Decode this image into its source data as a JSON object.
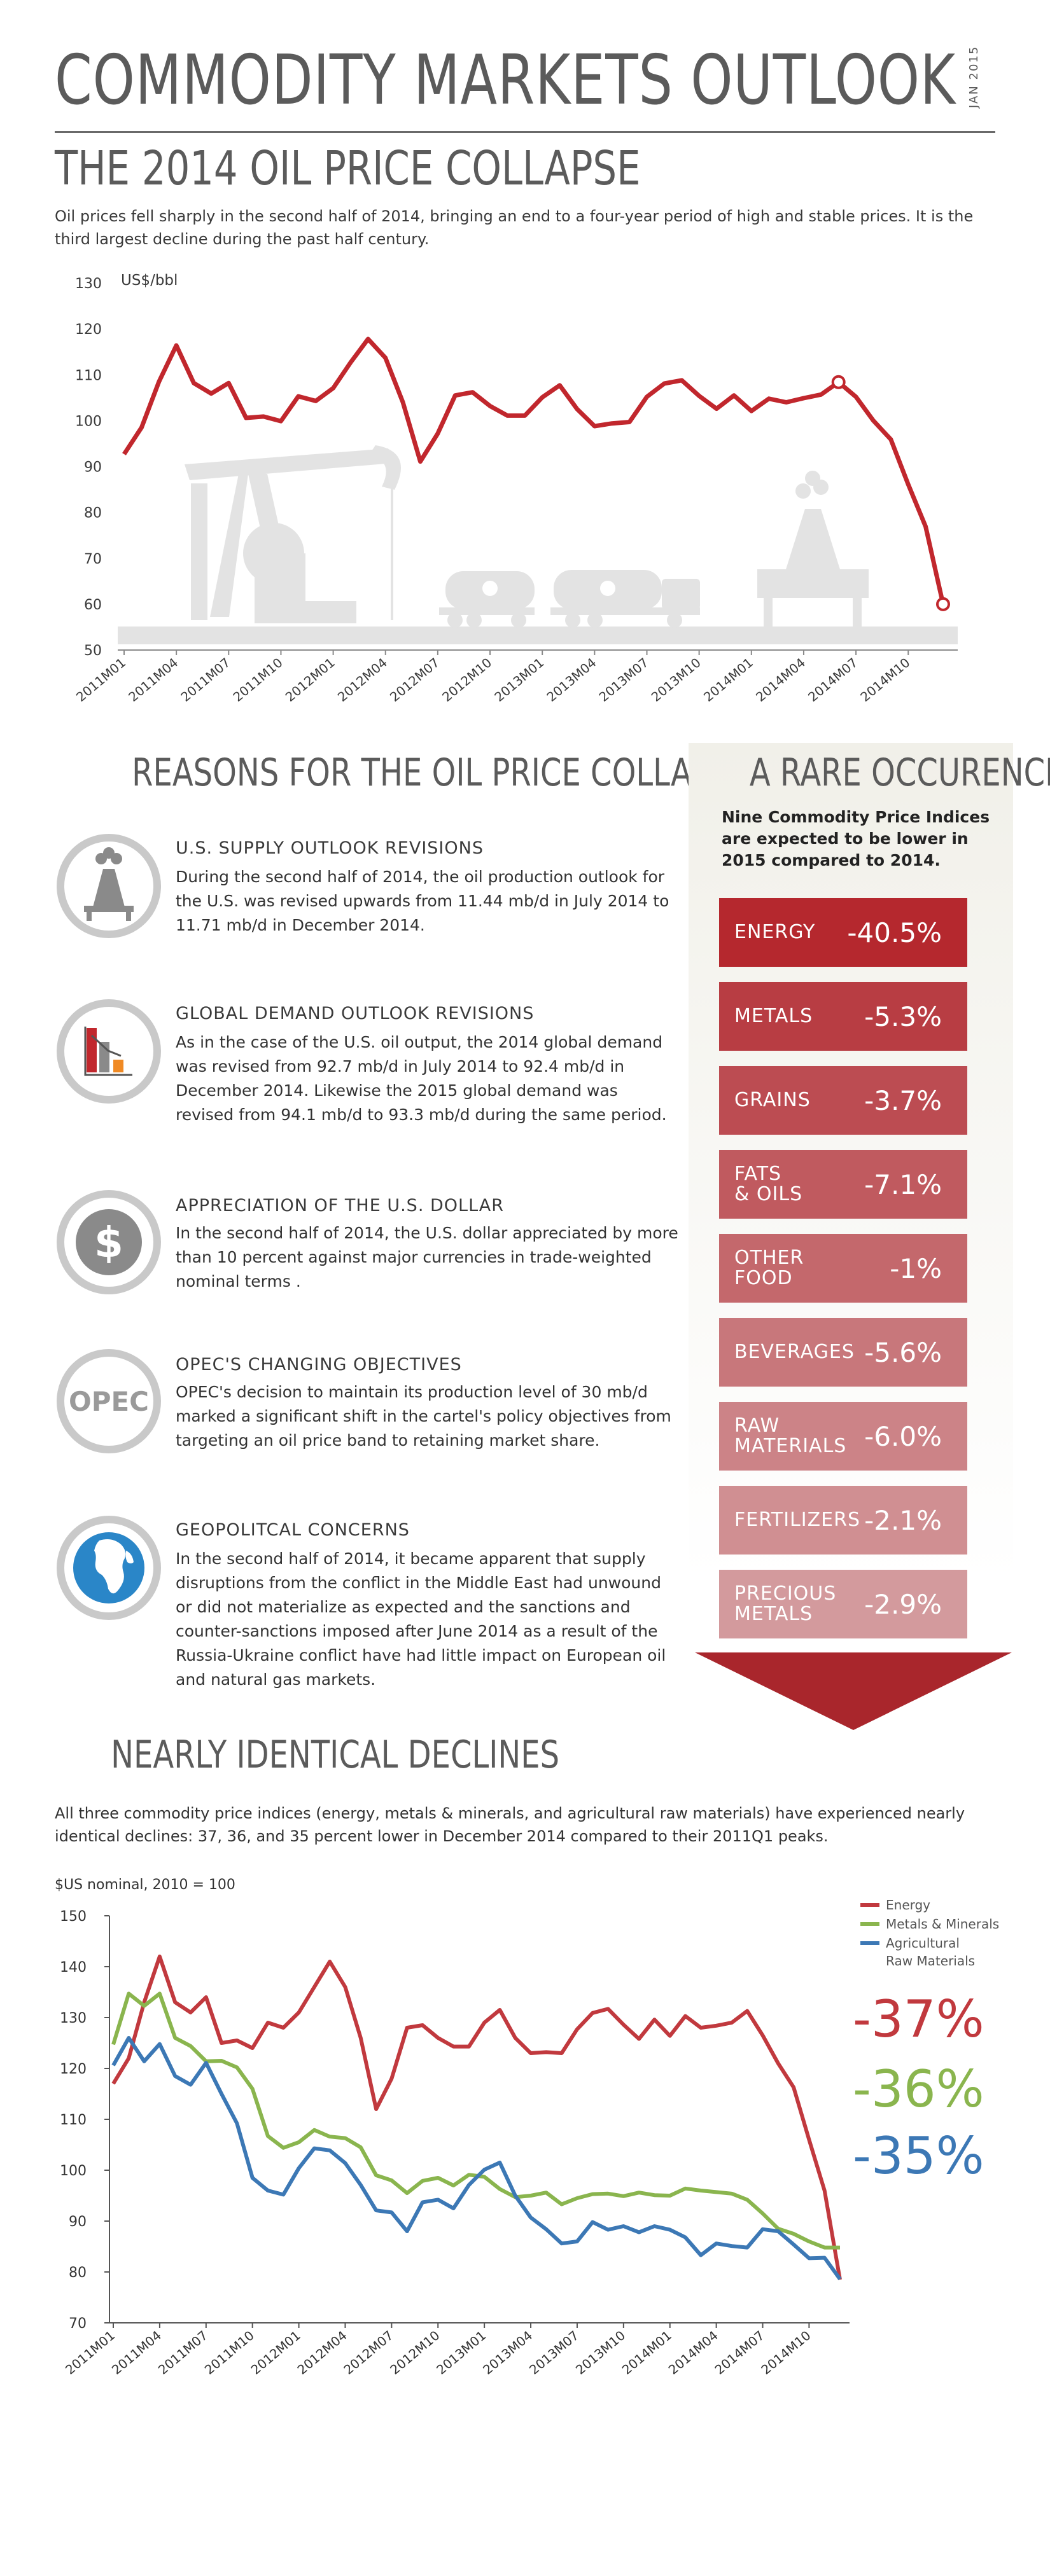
{
  "header": {
    "title": "COMMODITY MARKETS OUTLOOK",
    "edition": "JAN 2015",
    "subtitle": "THE 2014 OIL PRICE COLLAPSE",
    "intro": "Oil prices fell sharply in the second half of 2014, bringing an end to a four-year period of high and stable prices. It is the third largest decline during the past half century."
  },
  "chart_data": [
    {
      "type": "line",
      "title": "",
      "ylabel": "US$/bbl",
      "ylim": [
        50,
        130
      ],
      "yticks": [
        50,
        60,
        70,
        80,
        90,
        100,
        110,
        120,
        130
      ],
      "x_tick_labels": [
        "2011M01",
        "2011M04",
        "2011M07",
        "2011M10",
        "2012M01",
        "2012M04",
        "2012M07",
        "2012M10",
        "2013M01",
        "2013M04",
        "2013M07",
        "2013M10",
        "2014M01",
        "2014M04",
        "2014M07",
        "2014M10"
      ],
      "series": [
        {
          "color": "#c1272d",
          "values": [
            92.7,
            98.5,
            108.5,
            116.4,
            108.2,
            105.9,
            108.2,
            100.6,
            100.9,
            99.9,
            105.3,
            104.3,
            107.1,
            112.7,
            117.8,
            113.7,
            104.0,
            91.1,
            97.2,
            105.5,
            106.2,
            103.2,
            101.1,
            101.1,
            105.1,
            107.7,
            102.5,
            98.8,
            99.4,
            99.7,
            105.2,
            108.1,
            108.8,
            105.4,
            102.6,
            105.5,
            102.1,
            104.8,
            104.0,
            104.9,
            105.7,
            108.4,
            105.2,
            100.0,
            95.9,
            86.1,
            76.9,
            60.0
          ]
        }
      ]
    },
    {
      "type": "line",
      "title": "",
      "ylabel": "$US nominal, 2010 = 100",
      "ylim": [
        70,
        150
      ],
      "yticks": [
        70,
        80,
        90,
        100,
        110,
        120,
        130,
        140,
        150
      ],
      "x_tick_labels": [
        "2011M01",
        "2011M04",
        "2011M07",
        "2011M10",
        "2012M01",
        "2012M04",
        "2012M07",
        "2012M10",
        "2013M01",
        "2013M04",
        "2013M07",
        "2013M10",
        "2014M01",
        "2014M04",
        "2014M07",
        "2014M10"
      ],
      "series": [
        {
          "name": "Energy",
          "color": "#c1393e",
          "values": [
            117,
            122,
            133,
            142,
            133,
            131,
            134,
            125,
            125.5,
            124,
            129,
            128,
            131,
            136,
            141,
            136,
            126,
            112,
            118,
            128,
            128.5,
            126,
            124.3,
            124.3,
            129,
            131.5,
            126,
            123,
            123.2,
            123,
            127.7,
            130.9,
            131.7,
            128.6,
            125.8,
            129.6,
            126.4,
            130.3,
            128,
            128.4,
            129,
            131.3,
            126.5,
            121,
            116.3,
            106,
            96,
            78.5
          ]
        },
        {
          "name": "Metals & Minerals",
          "color": "#8ab54e",
          "values": [
            124.7,
            134.7,
            132.3,
            134.7,
            126,
            124.4,
            121.4,
            121.5,
            120.2,
            116,
            106.7,
            104.4,
            105.5,
            107.9,
            106.6,
            106.3,
            104.5,
            99,
            98,
            95.5,
            97.9,
            98.5,
            97,
            99.1,
            98.7,
            96.3,
            94.7,
            95,
            95.6,
            93.3,
            94.5,
            95.3,
            95.4,
            94.9,
            95.6,
            95.1,
            95,
            96.4,
            96,
            95.7,
            95.4,
            94.2,
            91.5,
            88.5,
            87.5,
            86,
            84.8,
            84.8
          ]
        },
        {
          "name": "Agricultural Raw Materials",
          "color": "#3c78b5",
          "values": [
            120.6,
            126,
            121.4,
            124.8,
            118.5,
            116.8,
            121.1,
            115,
            109.2,
            98.5,
            96,
            95.2,
            100.4,
            104.3,
            103.9,
            101.4,
            97.1,
            92.1,
            91.7,
            88,
            93.7,
            94.2,
            92.5,
            97.1,
            100.1,
            101.5,
            95,
            90.7,
            88.4,
            85.6,
            86,
            89.8,
            88.3,
            89,
            87.8,
            89,
            88.3,
            86.8,
            83.3,
            85.6,
            85.1,
            84.8,
            88.4,
            88,
            85.4,
            82.7,
            82.8,
            78.6
          ]
        }
      ],
      "change_labels": [
        "-37%",
        "-36%",
        "-35%"
      ]
    }
  ],
  "reasons": {
    "heading": "REASONS FOR THE OIL PRICE COLLAPSE",
    "items": [
      {
        "icon": "oil-derrick-icon",
        "title": "U.S. SUPPLY OUTLOOK REVISIONS",
        "text": "During the second half of 2014, the oil production outlook for the U.S. was revised upwards from 11.44 mb/d in July 2014 to 11.71 mb/d in December 2014."
      },
      {
        "icon": "bar-chart-icon",
        "title": "GLOBAL DEMAND OUTLOOK REVISIONS",
        "text": "As in the case of the U.S. oil output, the 2014 global demand was revised from 92.7 mb/d in July 2014 to 92.4 mb/d in December 2014. Likewise the 2015 global demand was revised from 94.1 mb/d to 93.3 mb/d during the same period."
      },
      {
        "icon": "dollar-icon",
        "title": "APPRECIATION OF THE U.S. DOLLAR",
        "text": "In the second half of 2014, the U.S. dollar appreciated by more than 10 percent against major currencies in trade-weighted nominal terms ."
      },
      {
        "icon": "opec-icon",
        "icon_label": "OPEC",
        "title": "OPEC'S CHANGING OBJECTIVES",
        "text": "OPEC's decision to maintain its production level of 30 mb/d marked a significant shift in the cartel's policy objectives from targeting an oil price band to retaining market share."
      },
      {
        "icon": "globe-icon",
        "title": "GEOPOLITCAL CONCERNS",
        "text": "In the second half of 2014, it became apparent that supply disruptions from the conflict in the Middle East had unwound or did not materialize as expected and the sanctions and counter-sanctions imposed after June 2014 as a result of the Russia-Ukraine conflict have had little impact on European oil and natural gas markets."
      }
    ]
  },
  "rare": {
    "heading": "A RARE OCCURENCE",
    "description": "Nine Commodity Price Indices are expected to be lower in 2015 compared to 2014.",
    "indices": [
      {
        "name": "ENERGY",
        "value": "-40.5%",
        "color": "#b5282e"
      },
      {
        "name": "METALS",
        "value": "-5.3%",
        "color": "#b83d43"
      },
      {
        "name": "GRAINS",
        "value": "-3.7%",
        "color": "#bc4c52"
      },
      {
        "name": "FATS\n& OILS",
        "value": "-7.1%",
        "color": "#c05a5f"
      },
      {
        "name": "OTHER\nFOOD",
        "value": "-1%",
        "color": "#c4686c"
      },
      {
        "name": "BEVERAGES",
        "value": "-5.6%",
        "color": "#c8777b"
      },
      {
        "name": "RAW\nMATERIALS",
        "value": "-6.0%",
        "color": "#cc8387"
      },
      {
        "name": "FERTILIZERS",
        "value": "-2.1%",
        "color": "#d08f92"
      },
      {
        "name": "PRECIOUS\nMETALS",
        "value": "-2.9%",
        "color": "#d39a9d"
      }
    ],
    "arrow_color": "#a9262c"
  },
  "declines": {
    "heading": "NEARLY IDENTICAL DECLINES",
    "intro": "All three commodity price indices (energy, metals & minerals, and agricultural raw materials) have experienced nearly identical declines: 37, 36, and 35 percent lower in December 2014 compared to their 2011Q1 peaks."
  }
}
